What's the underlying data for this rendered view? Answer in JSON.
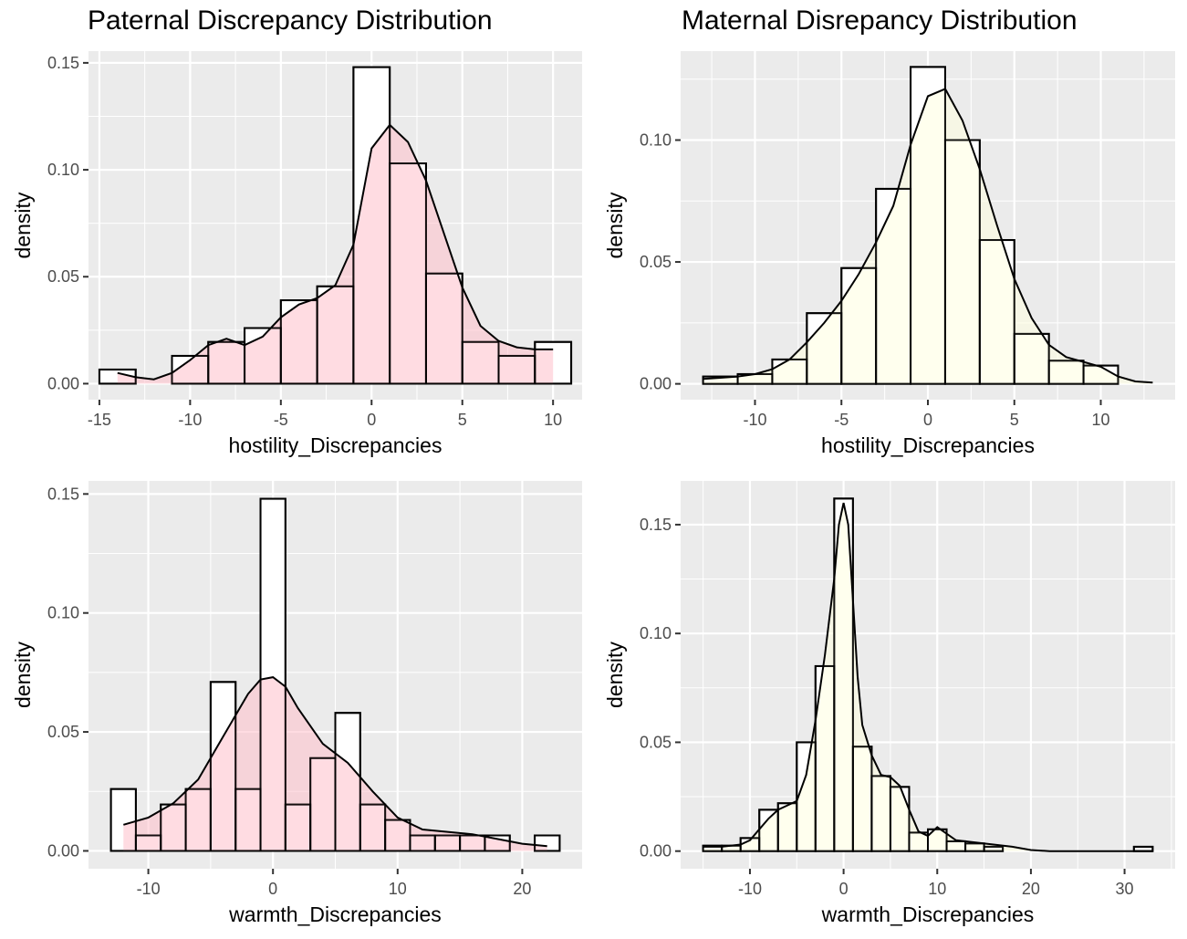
{
  "titles": {
    "left": "Paternal Discrepancy Distribution",
    "right": "Maternal Disrepancy Distribution"
  },
  "colors": {
    "panel_bg": "#ebebeb",
    "grid": "#ffffff",
    "paternal_fill": "#ffc0cb",
    "maternal_fill": "#ffffe0",
    "outline": "#000000"
  },
  "chart_data": [
    {
      "type": "histogram",
      "panel": "top-left",
      "xlabel": "hostility_Discrepancies",
      "ylabel": "density",
      "fill": "#ffc0cb",
      "xlim": [
        -15.6,
        11.6
      ],
      "ylim": [
        -0.0075,
        0.1555
      ],
      "xticks": [
        -15,
        -10,
        -5,
        0,
        5,
        10
      ],
      "xtick_labels": [
        "-15",
        "-10",
        "-5",
        "0",
        "5",
        "10"
      ],
      "yticks": [
        0,
        0.05,
        0.1,
        0.15
      ],
      "ytick_labels": [
        "0.00",
        "0.05",
        "0.10",
        "0.15"
      ],
      "bins": {
        "start": -15,
        "width": 2,
        "density": [
          0.0066,
          0,
          0.013,
          0.0195,
          0.026,
          0.039,
          0.0455,
          0.148,
          0.103,
          0.0515,
          0.0195,
          0.013,
          0.0195
        ]
      },
      "density_curve": {
        "x": [
          -14,
          -13,
          -12,
          -11,
          -10,
          -9,
          -8,
          -7,
          -6,
          -5,
          -4,
          -3,
          -2,
          -1,
          0,
          1,
          2,
          3,
          4,
          5,
          6,
          7,
          8,
          9,
          10
        ],
        "y": [
          0.005,
          0.003,
          0.002,
          0.005,
          0.011,
          0.018,
          0.021,
          0.018,
          0.022,
          0.031,
          0.037,
          0.04,
          0.046,
          0.065,
          0.11,
          0.121,
          0.113,
          0.095,
          0.07,
          0.045,
          0.027,
          0.02,
          0.017,
          0.016,
          0.016
        ]
      }
    },
    {
      "type": "histogram",
      "panel": "top-right",
      "xlabel": "hostility_Discrepancies",
      "ylabel": "density",
      "fill": "#ffffe0",
      "xlim": [
        -14.3,
        14.3
      ],
      "ylim": [
        -0.0065,
        0.1365
      ],
      "xticks": [
        -10,
        -5,
        0,
        5,
        10
      ],
      "xtick_labels": [
        "-10",
        "-5",
        "0",
        "5",
        "10"
      ],
      "yticks": [
        0,
        0.05,
        0.1
      ],
      "ytick_labels": [
        "0.00",
        "0.05",
        "0.10"
      ],
      "bins": {
        "start": -13,
        "width": 2,
        "density": [
          0.003,
          0.004,
          0.01,
          0.029,
          0.0475,
          0.08,
          0.13,
          0.1,
          0.059,
          0.0205,
          0.0095,
          0.0075,
          0
        ]
      },
      "density_curve": {
        "x": [
          -13,
          -12,
          -11,
          -10,
          -9,
          -8,
          -7,
          -6,
          -5,
          -4,
          -3,
          -2,
          -1,
          0,
          1,
          2,
          3,
          4,
          5,
          6,
          7,
          8,
          9,
          10,
          11,
          12,
          13
        ],
        "y": [
          0.002,
          0.0025,
          0.003,
          0.004,
          0.006,
          0.01,
          0.017,
          0.025,
          0.034,
          0.045,
          0.058,
          0.073,
          0.098,
          0.118,
          0.121,
          0.108,
          0.088,
          0.065,
          0.043,
          0.027,
          0.016,
          0.011,
          0.009,
          0.007,
          0.003,
          0.001,
          0.0005
        ]
      }
    },
    {
      "type": "histogram",
      "panel": "bottom-left",
      "xlabel": "warmth_Discrepancies",
      "ylabel": "density",
      "fill": "#ffc0cb",
      "xlim": [
        -14.8,
        24.8
      ],
      "ylim": [
        -0.0075,
        0.1555
      ],
      "xticks": [
        -10,
        0,
        10,
        20
      ],
      "xtick_labels": [
        "-10",
        "0",
        "10",
        "20"
      ],
      "yticks": [
        0,
        0.05,
        0.1,
        0.15
      ],
      "ytick_labels": [
        "0.00",
        "0.05",
        "0.10",
        "0.15"
      ],
      "bins": {
        "start": -13,
        "width": 2,
        "density": [
          0.026,
          0.0065,
          0.0195,
          0.026,
          0.071,
          0.026,
          0.148,
          0.0195,
          0.039,
          0.058,
          0.0195,
          0.013,
          0.0065,
          0.0065,
          0.0065,
          0.0065,
          0,
          0.0065
        ]
      },
      "density_curve": {
        "x": [
          -12,
          -10,
          -8,
          -6,
          -4,
          -2,
          -1,
          0,
          1,
          2,
          4,
          6,
          8,
          10,
          12,
          14,
          16,
          18,
          20,
          22
        ],
        "y": [
          0.011,
          0.014,
          0.02,
          0.03,
          0.048,
          0.066,
          0.072,
          0.073,
          0.069,
          0.06,
          0.045,
          0.037,
          0.025,
          0.014,
          0.009,
          0.008,
          0.007,
          0.005,
          0.003,
          0.002
        ]
      }
    },
    {
      "type": "histogram",
      "panel": "bottom-right",
      "xlabel": "warmth_Discrepancies",
      "ylabel": "density",
      "fill": "#ffffe0",
      "xlim": [
        -17.4,
        35.4
      ],
      "ylim": [
        -0.0081,
        0.1701
      ],
      "xticks": [
        -10,
        0,
        10,
        20,
        30
      ],
      "xtick_labels": [
        "-10",
        "0",
        "10",
        "20",
        "30"
      ],
      "yticks": [
        0,
        0.05,
        0.1,
        0.15
      ],
      "ytick_labels": [
        "0.00",
        "0.05",
        "0.10",
        "0.15"
      ],
      "bins": {
        "start": -15,
        "width": 2,
        "density": [
          0.0025,
          0.0025,
          0.006,
          0.019,
          0.022,
          0.05,
          0.085,
          0.162,
          0.048,
          0.0345,
          0.0295,
          0.0085,
          0.01,
          0.0045,
          0.0035,
          0.002,
          0,
          0,
          0,
          0,
          0,
          0,
          0,
          0.002
        ]
      },
      "density_curve": {
        "x": [
          -15,
          -13,
          -11,
          -10,
          -9,
          -8,
          -7,
          -6,
          -5,
          -4,
          -3,
          -2,
          -1,
          -0.5,
          0,
          0.5,
          1,
          1.5,
          2,
          3,
          4,
          5,
          6,
          7,
          8,
          9,
          10,
          11,
          12,
          14,
          16,
          18,
          20,
          22,
          26,
          30,
          33
        ],
        "y": [
          0.002,
          0.002,
          0.003,
          0.005,
          0.01,
          0.015,
          0.019,
          0.021,
          0.023,
          0.035,
          0.06,
          0.09,
          0.125,
          0.15,
          0.16,
          0.15,
          0.115,
          0.08,
          0.058,
          0.044,
          0.035,
          0.034,
          0.03,
          0.019,
          0.009,
          0.007,
          0.011,
          0.008,
          0.005,
          0.004,
          0.003,
          0.002,
          0.0005,
          0,
          0,
          0,
          0
        ]
      }
    }
  ]
}
